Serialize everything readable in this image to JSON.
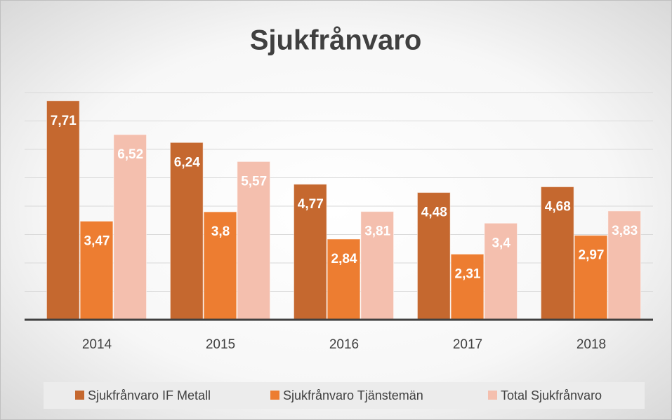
{
  "chart_data": {
    "type": "bar",
    "title": "Sjukfrånvaro",
    "categories": [
      "2014",
      "2015",
      "2016",
      "2017",
      "2018"
    ],
    "series": [
      {
        "name": "Sjukfrånvaro IF Metall",
        "color": "#c5682f",
        "values": [
          7.71,
          6.24,
          4.77,
          4.48,
          4.68
        ],
        "value_labels": [
          "7,71",
          "6,24",
          "4,77",
          "4,48",
          "4,68"
        ]
      },
      {
        "name": "Sjukfrånvaro Tjänstemän",
        "color": "#ed7d31",
        "values": [
          3.47,
          3.8,
          2.84,
          2.31,
          2.97
        ],
        "value_labels": [
          "3,47",
          "3,8",
          "2,84",
          "2,31",
          "2,97"
        ]
      },
      {
        "name": "Total Sjukfrånvaro",
        "color": "#f4bfae",
        "values": [
          6.52,
          5.57,
          3.81,
          3.4,
          3.83
        ],
        "value_labels": [
          "6,52",
          "5,57",
          "3,81",
          "3,4",
          "3,83"
        ]
      }
    ],
    "ylim": [
      0,
      8
    ],
    "yticks": [
      0,
      1,
      2,
      3,
      4,
      5,
      6,
      7,
      8
    ],
    "grid": true,
    "legend": "bottom"
  }
}
